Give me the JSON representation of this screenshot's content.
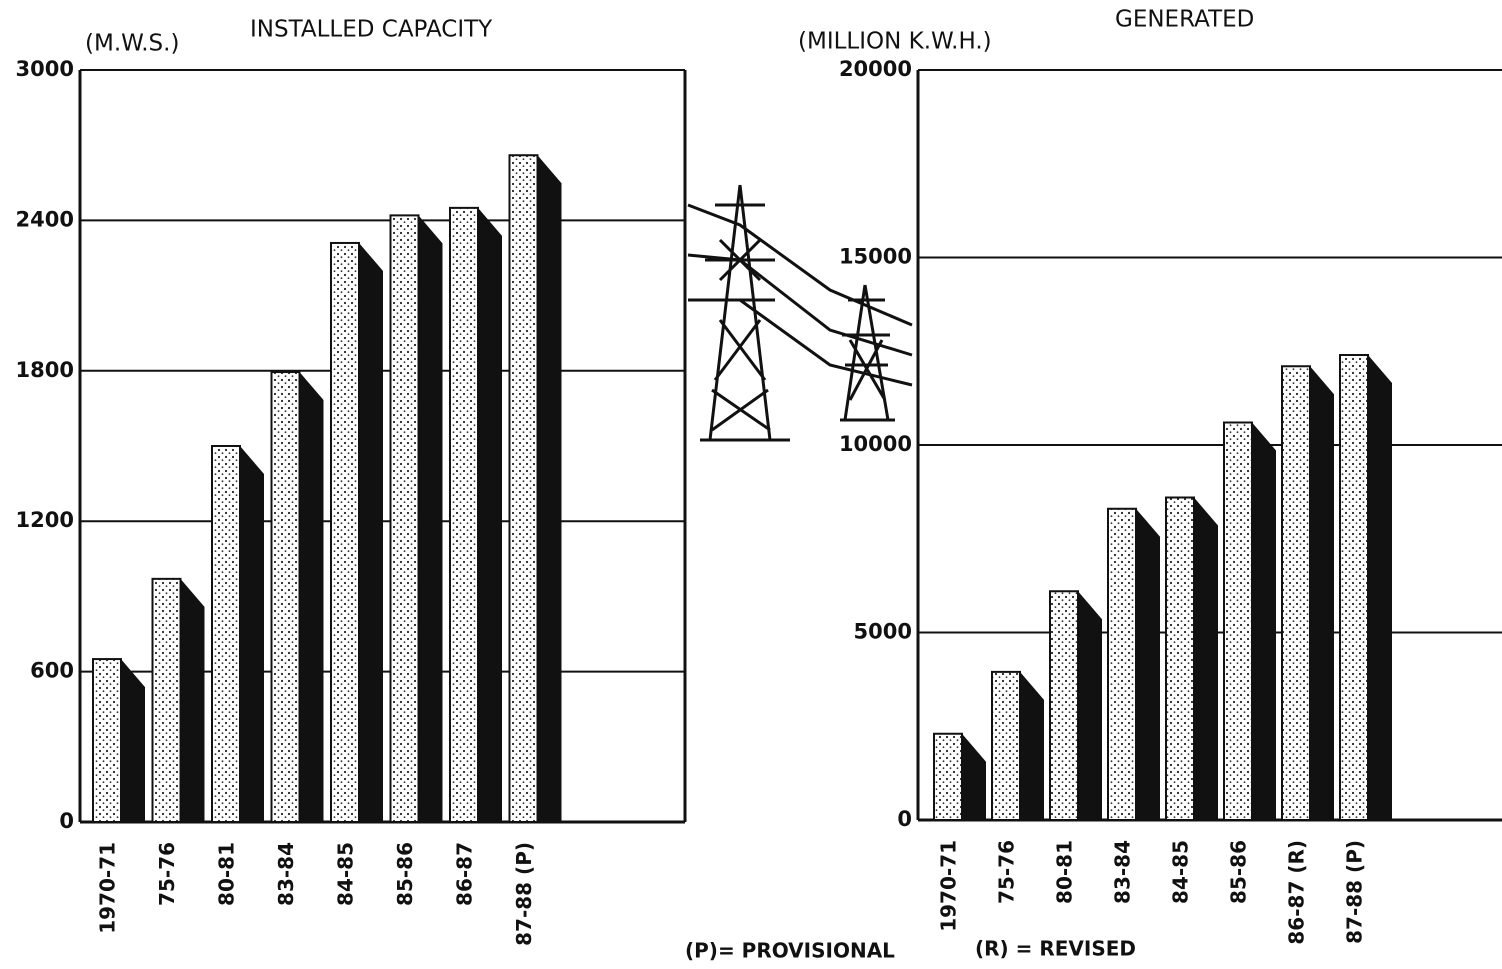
{
  "chart_data": [
    {
      "type": "bar",
      "title": "INSTALLED CAPACITY",
      "ylabel": "(M.W.S.)",
      "categories": [
        "1970-71",
        "75-76",
        "80-81",
        "83-84",
        "84-85",
        "85-86",
        "86-87",
        "87-88 (P)"
      ],
      "values": [
        650,
        970,
        1500,
        1795,
        2310,
        2420,
        2450,
        2660
      ],
      "color": "#111111",
      "ylim": [
        0,
        3000
      ],
      "yticks": [
        0,
        600,
        1200,
        1800,
        2400,
        3000
      ],
      "grid": true
    },
    {
      "type": "bar",
      "title": "GENERATED",
      "ylabel": "(MILLION K.W.H.)",
      "categories": [
        "1970-71",
        "75-76",
        "80-81",
        "83-84",
        "84-85",
        "85-86",
        "86-87 (R)",
        "87-88 (P)"
      ],
      "values": [
        2300,
        3950,
        6100,
        8300,
        8600,
        10600,
        12100,
        12400
      ],
      "color": "#111111",
      "ylim": [
        0,
        20000
      ],
      "yticks": [
        0,
        5000,
        10000,
        15000,
        20000
      ],
      "grid": true
    }
  ],
  "notes": [
    "(P)= PROVISIONAL",
    "(R) = REVISED"
  ]
}
